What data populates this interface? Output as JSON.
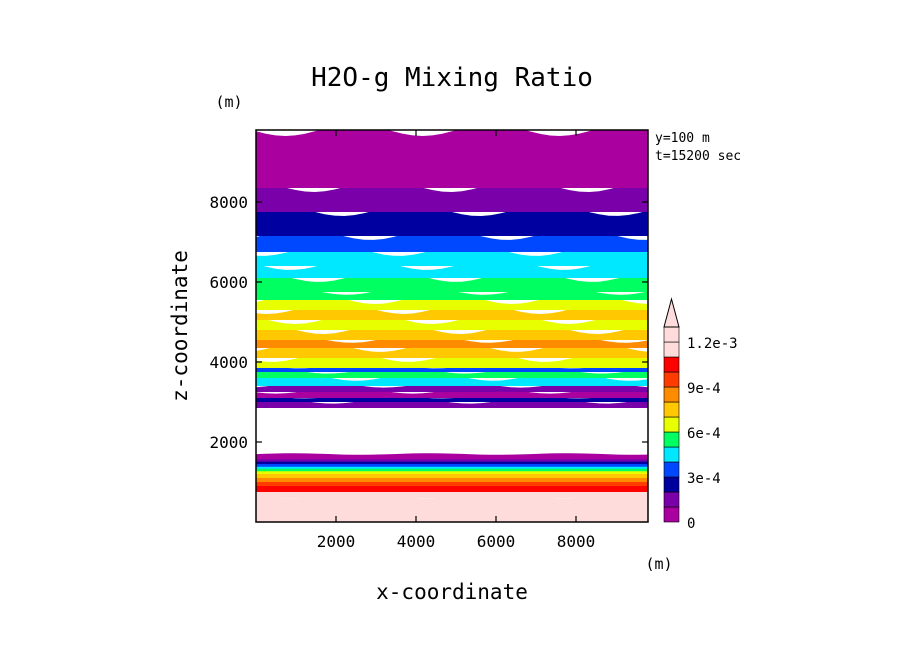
{
  "chart_data": {
    "type": "heatmap",
    "title": "H2O-g Mixing Ratio",
    "xlabel": "x-coordinate",
    "ylabel": "z-coordinate",
    "x_unit": "(m)",
    "y_unit": "(m)",
    "annotations": [
      "y=100 m",
      "t=15200 sec"
    ],
    "xlim": [
      0,
      9800
    ],
    "ylim": [
      0,
      9800
    ],
    "x_ticks": [
      2000,
      4000,
      6000,
      8000
    ],
    "y_ticks": [
      2000,
      4000,
      6000,
      8000
    ],
    "colorbar": {
      "min": 0,
      "max": 0.0013,
      "step": 0.0001,
      "extend": "max",
      "labels": [
        {
          "value": 0,
          "text": "0"
        },
        {
          "value": 0.0003,
          "text": "3e-4"
        },
        {
          "value": 0.0006,
          "text": "6e-4"
        },
        {
          "value": 0.0009,
          "text": "9e-4"
        },
        {
          "value": 0.0012,
          "text": "1.2e-3"
        }
      ],
      "colors": [
        "#aa00a0",
        "#7a00aa",
        "#0000a0",
        "#0048ff",
        "#00e8ff",
        "#00ff60",
        "#e8ff00",
        "#ffc800",
        "#ff8c00",
        "#ff3c00",
        "#ff0000",
        "#ffdcdc",
        "#ffdcdc"
      ]
    },
    "bands": [
      {
        "z_bottom": 0,
        "z_top": 650,
        "value": 0.0013
      },
      {
        "z_bottom": 650,
        "z_top": 800,
        "value": 0.00115
      },
      {
        "z_bottom": 800,
        "z_top": 950,
        "value": 0.00105
      },
      {
        "z_bottom": 950,
        "z_top": 1050,
        "value": 0.00095
      },
      {
        "z_bottom": 1050,
        "z_top": 1150,
        "value": 0.00085
      },
      {
        "z_bottom": 1150,
        "z_top": 1250,
        "value": 0.00075
      },
      {
        "z_bottom": 1250,
        "z_top": 1320,
        "value": 0.00065
      },
      {
        "z_bottom": 1320,
        "z_top": 1380,
        "value": 0.00055
      },
      {
        "z_bottom": 1380,
        "z_top": 1430,
        "value": 0.00045
      },
      {
        "z_bottom": 1430,
        "z_top": 1500,
        "value": 0.00035
      },
      {
        "z_bottom": 1500,
        "z_top": 1560,
        "value": 0.00025
      },
      {
        "z_bottom": 1560,
        "z_top": 1620,
        "value": 0.00015
      },
      {
        "z_bottom": 1620,
        "z_top": 1700,
        "value": 5e-05
      },
      {
        "z_bottom": 2900,
        "z_top": 3050,
        "value": 0.00015
      },
      {
        "z_bottom": 3050,
        "z_top": 3150,
        "value": 0.00025
      },
      {
        "z_bottom": 3150,
        "z_top": 3300,
        "value": 5e-05
      },
      {
        "z_bottom": 3300,
        "z_top": 3450,
        "value": 0.00015
      },
      {
        "z_bottom": 3450,
        "z_top": 3650,
        "value": 0.00045
      },
      {
        "z_bottom": 3650,
        "z_top": 3800,
        "value": 0.00055
      },
      {
        "z_bottom": 3800,
        "z_top": 3900,
        "value": 0.00035
      },
      {
        "z_bottom": 3900,
        "z_top": 4150,
        "value": 0.00065
      },
      {
        "z_bottom": 4150,
        "z_top": 4400,
        "value": 0.00075
      },
      {
        "z_bottom": 4400,
        "z_top": 4600,
        "value": 0.00085
      },
      {
        "z_bottom": 4600,
        "z_top": 4850,
        "value": 0.00075
      },
      {
        "z_bottom": 4850,
        "z_top": 5100,
        "value": 0.00065
      },
      {
        "z_bottom": 5100,
        "z_top": 5350,
        "value": 0.00075
      },
      {
        "z_bottom": 5350,
        "z_top": 5600,
        "value": 0.00065
      },
      {
        "z_bottom": 5600,
        "z_top": 5800,
        "value": 0.00055
      },
      {
        "z_bottom": 5800,
        "z_top": 6150,
        "value": 0.00055
      },
      {
        "z_bottom": 6150,
        "z_top": 6450,
        "value": 0.00045
      },
      {
        "z_bottom": 6450,
        "z_top": 6800,
        "value": 0.00045
      },
      {
        "z_bottom": 6800,
        "z_top": 7200,
        "value": 0.00035
      },
      {
        "z_bottom": 7200,
        "z_top": 7800,
        "value": 0.00025
      },
      {
        "z_bottom": 7800,
        "z_top": 8400,
        "value": 0.00015
      },
      {
        "z_bottom": 8400,
        "z_top": 9800,
        "value": 5e-05
      }
    ]
  }
}
